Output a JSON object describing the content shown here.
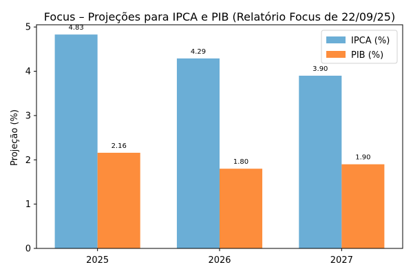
{
  "chart_data": {
    "type": "bar",
    "title": "Focus – Projeções para IPCA e PIB (Relatório Focus de 22/09/25)",
    "xlabel": "",
    "ylabel": "Projeção (%)",
    "categories": [
      "2025",
      "2026",
      "2027"
    ],
    "ylim": [
      0,
      5.05
    ],
    "yticks": [
      0,
      1,
      2,
      3,
      4,
      5
    ],
    "grid": false,
    "legend_position": "top-right",
    "series": [
      {
        "name": "IPCA (%)",
        "color": "#6baed6",
        "values": [
          4.83,
          4.29,
          3.9
        ],
        "labels": [
          "4.83",
          "4.29",
          "3.90"
        ]
      },
      {
        "name": "PIB (%)",
        "color": "#fd8d3c",
        "values": [
          2.16,
          1.8,
          1.9
        ],
        "labels": [
          "2.16",
          "1.80",
          "1.90"
        ]
      }
    ]
  }
}
